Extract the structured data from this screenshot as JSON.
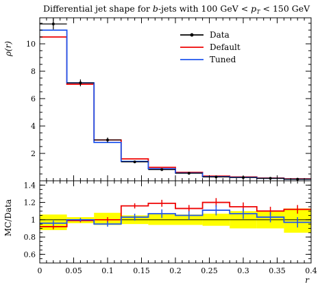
{
  "chart_data": {
    "type": "line",
    "title": "Differential jet shape for b-jets with 100 GeV < p_T < 150 GeV",
    "title_parts": {
      "a": "Differential jet shape for ",
      "b": "b",
      "c": "-jets with 100 GeV < ",
      "d": "p",
      "e": "T",
      "f": " < 150 GeV"
    },
    "xlabel": "r",
    "main": {
      "ylabel": "ρ(r)",
      "xlim": [
        0,
        0.4
      ],
      "ylim": [
        0,
        11.9
      ],
      "yticks": [
        "2",
        "4",
        "6",
        "8",
        "10"
      ],
      "xticks": [],
      "bin_edges": [
        0,
        0.04,
        0.08,
        0.12,
        0.16,
        0.2,
        0.24,
        0.28,
        0.32,
        0.36,
        0.4
      ],
      "series": [
        {
          "name": "Data",
          "color": "#000000",
          "style": "points",
          "x": [
            0.02,
            0.06,
            0.1,
            0.14,
            0.18,
            0.22,
            0.26,
            0.3,
            0.34,
            0.38
          ],
          "y": [
            11.45,
            7.15,
            2.98,
            1.38,
            0.82,
            0.55,
            0.28,
            0.24,
            0.18,
            0.12
          ],
          "yerr": [
            0.4,
            0.25,
            0.18,
            0.06,
            0.05,
            0.04,
            0.03,
            0.03,
            0.02,
            0.02
          ]
        },
        {
          "name": "Default",
          "color": "#ee0000",
          "style": "step",
          "values": [
            10.5,
            7.05,
            2.98,
            1.6,
            0.98,
            0.62,
            0.34,
            0.28,
            0.2,
            0.14
          ]
        },
        {
          "name": "Tuned",
          "color": "#1f55ee",
          "style": "step",
          "values": [
            11.0,
            7.15,
            2.8,
            1.42,
            0.88,
            0.57,
            0.3,
            0.25,
            0.18,
            0.12
          ]
        }
      ],
      "legend": {
        "position": "top-right",
        "entries": [
          "Data",
          "Default",
          "Tuned"
        ]
      }
    },
    "ratio": {
      "ylabel": "MC/Data",
      "xlim": [
        0,
        0.4
      ],
      "ylim": [
        0.5,
        1.45
      ],
      "yticks": [
        "0.6",
        "0.8",
        "1",
        "1.2",
        "1.4"
      ],
      "xticks": [
        "0",
        "0.05",
        "0.1",
        "0.15",
        "0.2",
        "0.25",
        "0.3",
        "0.35",
        "0.4"
      ],
      "band_color": "#ffff00",
      "band_lo": [
        0.88,
        0.96,
        0.94,
        0.95,
        0.94,
        0.94,
        0.93,
        0.9,
        0.9,
        0.85
      ],
      "band_hi": [
        1.06,
        1.03,
        1.08,
        1.05,
        1.07,
        1.06,
        1.07,
        1.1,
        1.1,
        1.13
      ],
      "series": [
        {
          "name": "Default",
          "color": "#ee0000",
          "values": [
            0.92,
            0.99,
            1.0,
            1.16,
            1.19,
            1.13,
            1.2,
            1.15,
            1.1,
            1.12
          ],
          "err": [
            0.03,
            0.02,
            0.03,
            0.03,
            0.04,
            0.04,
            0.05,
            0.05,
            0.05,
            0.05
          ]
        },
        {
          "name": "Tuned",
          "color": "#1f55ee",
          "values": [
            0.96,
            1.0,
            0.95,
            1.03,
            1.07,
            1.05,
            1.11,
            1.07,
            1.03,
            0.97
          ],
          "err": [
            0.03,
            0.02,
            0.03,
            0.04,
            0.05,
            0.05,
            0.06,
            0.06,
            0.06,
            0.06
          ]
        }
      ]
    }
  }
}
